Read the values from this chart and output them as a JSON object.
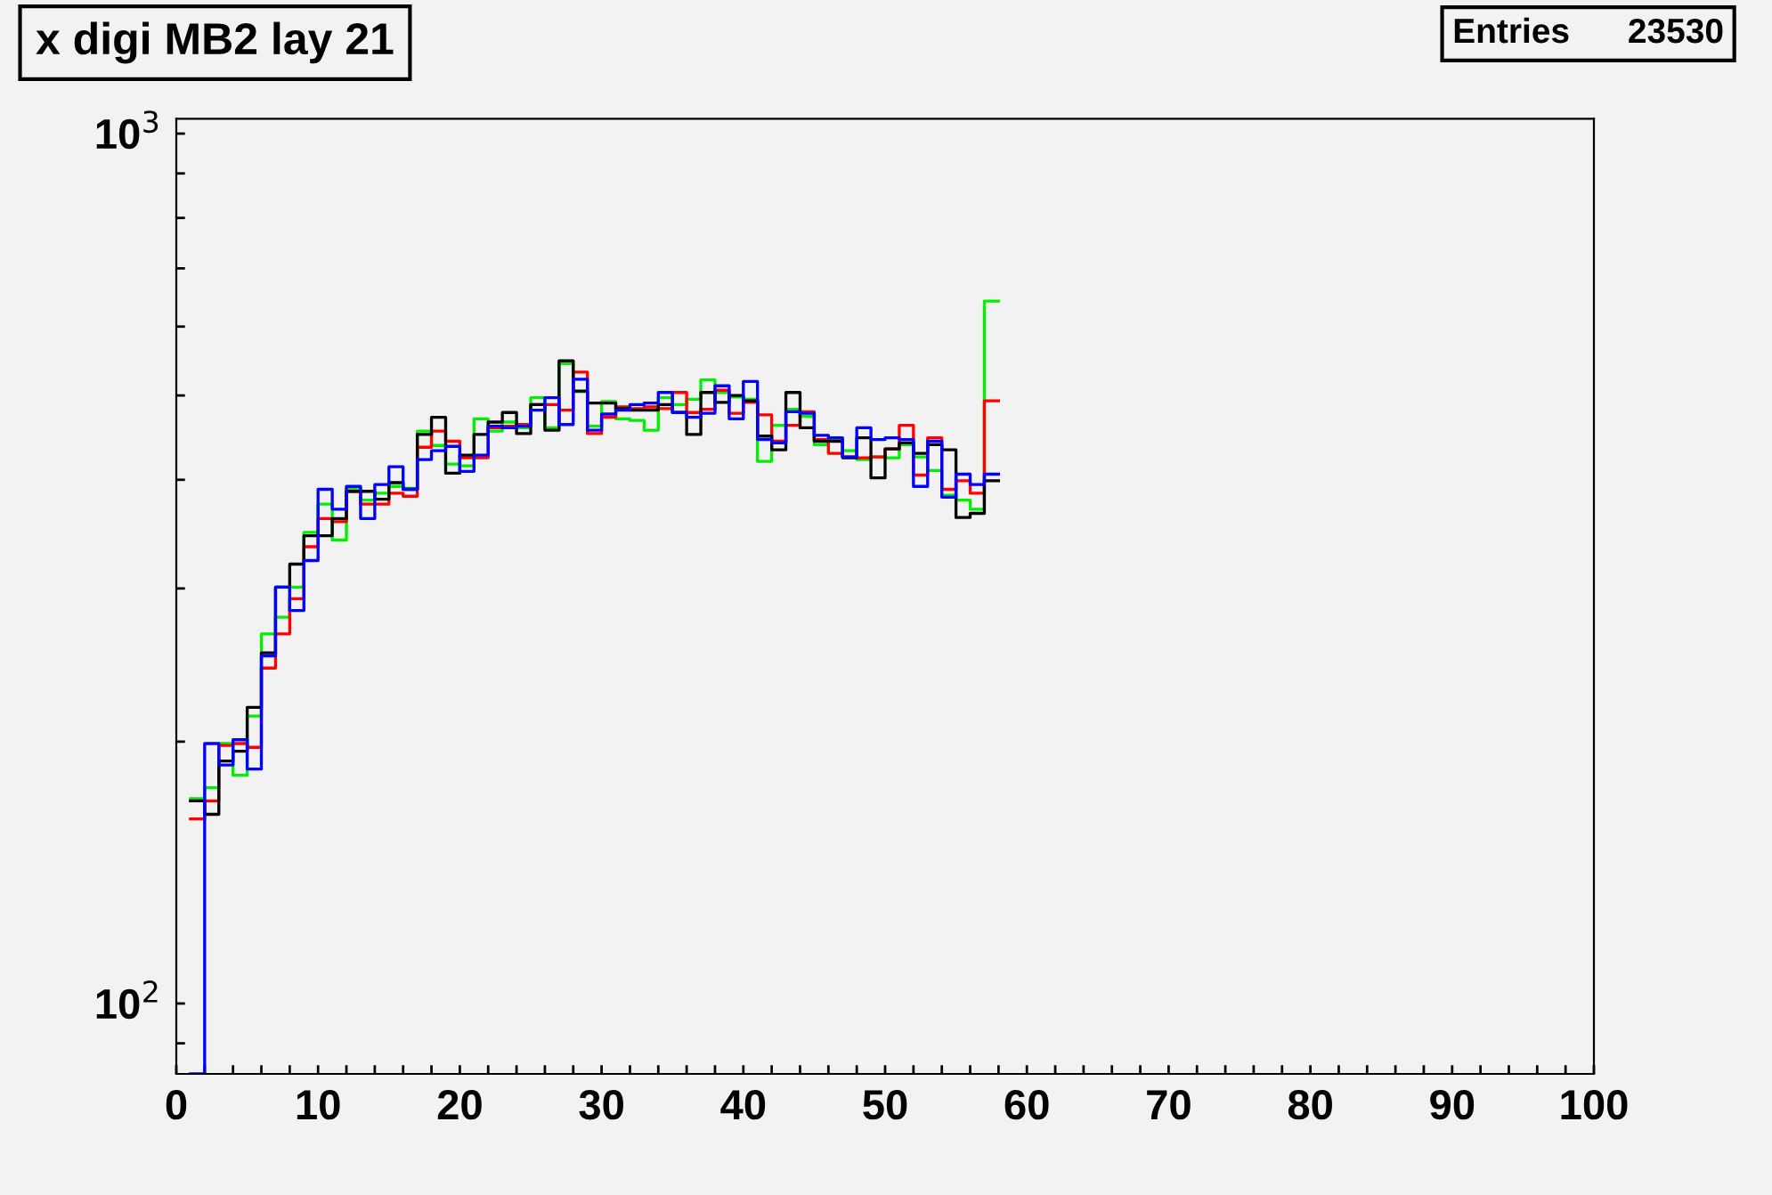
{
  "chart_data": {
    "type": "histogram",
    "title": "x digi MB2 lay 21",
    "annotations": [
      "Entries      23530"
    ],
    "bins": [
      1,
      2,
      3,
      4,
      5,
      6,
      7,
      8,
      9,
      10,
      11,
      12,
      13,
      14,
      15,
      16,
      17,
      18,
      19,
      20,
      21,
      22,
      23,
      24,
      25,
      26,
      27,
      28,
      29,
      30,
      31,
      32,
      33,
      34,
      35,
      36,
      37,
      38,
      39,
      40,
      41,
      42,
      43,
      44,
      45,
      46,
      47,
      48,
      49,
      50,
      51,
      52,
      53,
      54,
      55,
      56,
      57,
      58
    ],
    "series": [
      {
        "color": "#00ee00",
        "values": [
          172,
          177,
          199,
          183,
          214,
          266,
          278,
          301,
          348,
          375,
          341,
          391,
          379,
          386,
          393,
          391,
          455,
          438,
          417,
          415,
          470,
          455,
          466,
          459,
          497,
          459,
          544,
          505,
          461,
          492,
          470,
          468,
          456,
          497,
          488,
          495,
          521,
          504,
          498,
          495,
          420,
          462,
          482,
          473,
          439,
          445,
          432,
          422,
          425,
          424,
          439,
          425,
          410,
          384,
          379,
          370,
          642
        ]
      },
      {
        "color": "#ff0000",
        "values": [
          163,
          171,
          198,
          199,
          197,
          243,
          266,
          292,
          335,
          361,
          358,
          388,
          375,
          375,
          386,
          383,
          436,
          455,
          443,
          424,
          424,
          459,
          461,
          463,
          488,
          488,
          481,
          532,
          452,
          472,
          485,
          483,
          485,
          483,
          504,
          478,
          482,
          507,
          477,
          491,
          475,
          443,
          462,
          479,
          445,
          429,
          425,
          424,
          425,
          434,
          462,
          405,
          447,
          390,
          399,
          386,
          493
        ]
      },
      {
        "color": "#000000",
        "values": [
          171,
          165,
          190,
          195,
          219,
          253,
          301,
          320,
          345,
          345,
          361,
          388,
          388,
          380,
          397,
          390,
          451,
          472,
          407,
          427,
          451,
          466,
          478,
          452,
          488,
          456,
          548,
          506,
          490,
          490,
          483,
          481,
          481,
          488,
          478,
          451,
          504,
          491,
          500,
          493,
          449,
          433,
          504,
          459,
          443,
          443,
          424,
          447,
          402,
          434,
          441,
          429,
          439,
          433,
          362,
          366,
          399
        ]
      },
      {
        "color": "#0000ff",
        "values": [
          null,
          199,
          188,
          201,
          186,
          251,
          301,
          283,
          323,
          390,
          370,
          393,
          361,
          395,
          414,
          390,
          422,
          432,
          437,
          409,
          427,
          461,
          459,
          461,
          481,
          497,
          463,
          522,
          456,
          476,
          481,
          488,
          490,
          504,
          478,
          472,
          477,
          513,
          470,
          519,
          445,
          441,
          479,
          477,
          450,
          447,
          425,
          459,
          445,
          447,
          445,
          393,
          443,
          382,
          406,
          395,
          406
        ]
      }
    ],
    "xlim": [
      0,
      100
    ],
    "xticks": [
      0,
      {
        "value": 2,
        "label": null
      },
      {
        "value": 4,
        "label": null
      },
      {
        "value": 6,
        "label": null
      },
      {
        "value": 8,
        "label": null
      },
      10,
      {
        "value": 12,
        "label": null
      },
      {
        "value": 14,
        "label": null
      },
      {
        "value": 16,
        "label": null
      },
      {
        "value": 18,
        "label": null
      },
      20,
      {
        "value": 22,
        "label": null
      },
      {
        "value": 24,
        "label": null
      },
      {
        "value": 26,
        "label": null
      },
      {
        "value": 28,
        "label": null
      },
      30,
      {
        "value": 32,
        "label": null
      },
      {
        "value": 34,
        "label": null
      },
      {
        "value": 36,
        "label": null
      },
      {
        "value": 38,
        "label": null
      },
      40,
      {
        "value": 42,
        "label": null
      },
      {
        "value": 44,
        "label": null
      },
      {
        "value": 46,
        "label": null
      },
      {
        "value": 48,
        "label": null
      },
      50,
      {
        "value": 52,
        "label": null
      },
      {
        "value": 54,
        "label": null
      },
      {
        "value": 56,
        "label": null
      },
      {
        "value": 58,
        "label": null
      },
      60,
      {
        "value": 62,
        "label": null
      },
      {
        "value": 64,
        "label": null
      },
      {
        "value": 66,
        "label": null
      },
      {
        "value": 68,
        "label": null
      },
      70,
      {
        "value": 72,
        "label": null
      },
      {
        "value": 74,
        "label": null
      },
      {
        "value": 76,
        "label": null
      },
      {
        "value": 78,
        "label": null
      },
      80,
      {
        "value": 82,
        "label": null
      },
      {
        "value": 84,
        "label": null
      },
      {
        "value": 86,
        "label": null
      },
      {
        "value": 88,
        "label": null
      },
      90,
      {
        "value": 92,
        "label": null
      },
      {
        "value": 94,
        "label": null
      },
      {
        "value": 96,
        "label": null
      },
      {
        "value": 98,
        "label": null
      },
      100
    ],
    "ylim": [
      83,
      1040
    ],
    "log": "y",
    "yticks": [
      {
        "value": 90,
        "label": null
      },
      {
        "value": 100,
        "label": "10$^{2}$"
      },
      {
        "value": 200,
        "label": null
      },
      {
        "value": 300,
        "label": null
      },
      {
        "value": 400,
        "label": null
      },
      {
        "value": 500,
        "label": null
      },
      {
        "value": 600,
        "label": null
      },
      {
        "value": 700,
        "label": null
      },
      {
        "value": 800,
        "label": null
      },
      {
        "value": 900,
        "label": null
      },
      {
        "value": 1000,
        "label": "10$^{3}$"
      }
    ],
    "grid": false,
    "line_style": "solid"
  }
}
